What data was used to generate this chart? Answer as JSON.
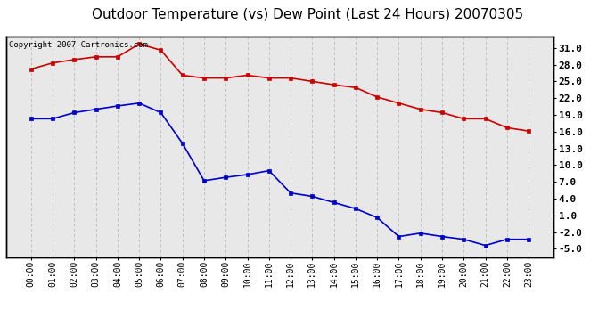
{
  "title": "Outdoor Temperature (vs) Dew Point (Last 24 Hours) 20070305",
  "copyright_text": "Copyright 2007 Cartronics.com",
  "x_labels": [
    "00:00",
    "01:00",
    "02:00",
    "03:00",
    "04:00",
    "05:00",
    "06:00",
    "07:00",
    "08:00",
    "09:00",
    "10:00",
    "11:00",
    "12:00",
    "13:00",
    "14:00",
    "15:00",
    "16:00",
    "17:00",
    "18:00",
    "19:00",
    "20:00",
    "21:00",
    "22:00",
    "23:00"
  ],
  "temp_values": [
    27.2,
    28.3,
    28.9,
    29.4,
    29.4,
    31.7,
    30.6,
    26.1,
    25.6,
    25.6,
    26.1,
    25.6,
    25.6,
    25.0,
    24.4,
    23.9,
    22.2,
    21.1,
    20.0,
    19.4,
    18.3,
    18.3,
    16.7,
    16.1
  ],
  "dew_values": [
    18.3,
    18.3,
    19.4,
    20.0,
    20.6,
    21.1,
    19.4,
    13.9,
    7.2,
    7.8,
    8.3,
    9.0,
    5.0,
    4.4,
    3.3,
    2.2,
    0.6,
    -2.8,
    -2.2,
    -2.8,
    -3.3,
    -4.4,
    -3.3,
    -3.3
  ],
  "temp_color": "#cc0000",
  "dew_color": "#0000cc",
  "bg_color": "#ffffff",
  "plot_bg_color": "#e8e8e8",
  "grid_color": "#bbbbbb",
  "ylim": [
    -6.5,
    33.0
  ],
  "yticks_right": [
    31.0,
    28.0,
    25.0,
    22.0,
    19.0,
    16.0,
    13.0,
    10.0,
    7.0,
    4.0,
    1.0,
    -2.0,
    -5.0
  ],
  "title_fontsize": 11,
  "copyright_fontsize": 6.5
}
